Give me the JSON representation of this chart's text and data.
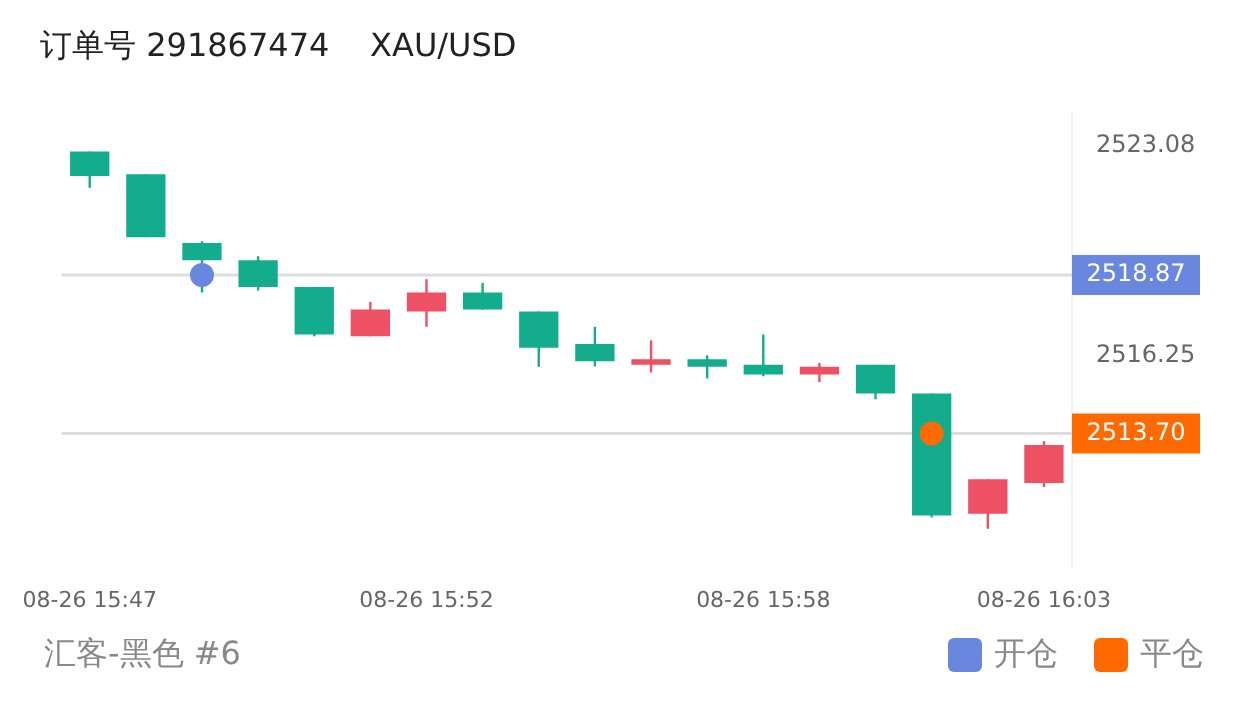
{
  "chart_data": {
    "type": "candlestick",
    "title": "订单号 291867474    XAU/USD",
    "categories": [
      "08-26 15:47",
      null,
      null,
      null,
      null,
      null,
      "08-26 15:52",
      null,
      null,
      null,
      null,
      null,
      "08-26 15:58",
      null,
      null,
      null,
      null,
      "08-26 16:03"
    ],
    "ohlc": [
      [
        2522.89,
        2522.89,
        2521.71,
        2522.09
      ],
      [
        2522.15,
        2522.15,
        2520.1,
        2520.1
      ],
      [
        2519.91,
        2519.97,
        2518.3,
        2519.35
      ],
      [
        2519.35,
        2519.48,
        2518.36,
        2518.48
      ],
      [
        2518.48,
        2518.48,
        2516.87,
        2516.93
      ],
      [
        2516.87,
        2517.99,
        2516.87,
        2517.74
      ],
      [
        2517.68,
        2518.73,
        2517.18,
        2518.3
      ],
      [
        2518.3,
        2518.61,
        2517.74,
        2517.74
      ],
      [
        2517.68,
        2517.68,
        2515.88,
        2516.5
      ],
      [
        2516.62,
        2517.18,
        2515.89,
        2516.06
      ],
      [
        2515.94,
        2516.74,
        2515.69,
        2516.12
      ],
      [
        2516.12,
        2516.25,
        2515.5,
        2515.88
      ],
      [
        2515.94,
        2516.93,
        2515.57,
        2515.63
      ],
      [
        2515.63,
        2516.0,
        2515.38,
        2515.88
      ],
      [
        2515.94,
        2515.94,
        2514.82,
        2515.01
      ],
      [
        2515.01,
        2515.01,
        2510.97,
        2511.03
      ],
      [
        2511.09,
        2512.21,
        2510.6,
        2512.21
      ],
      [
        2512.09,
        2513.45,
        2511.96,
        2513.33
      ]
    ],
    "colors": [
      "#13ad8d",
      "#13ad8d",
      "#13ad8d",
      "#13ad8d",
      "#13ad8d",
      "#ee5163",
      "#ee5163",
      "#13ad8d",
      "#13ad8d",
      "#13ad8d",
      "#ee5163",
      "#13ad8d",
      "#13ad8d",
      "#ee5163",
      "#13ad8d",
      "#13ad8d",
      "#ee5163",
      "#ee5163"
    ],
    "series": [
      {
        "name": "开仓",
        "type": "scatter",
        "color": "#6a87e0",
        "values": [
          null,
          null,
          2518.87,
          null,
          null,
          null,
          null,
          null,
          null,
          null,
          null,
          null,
          null,
          null,
          null,
          null,
          null,
          null
        ]
      },
      {
        "name": "平仓",
        "type": "scatter",
        "color": "#ff6a00",
        "values": [
          null,
          null,
          null,
          null,
          null,
          null,
          null,
          null,
          null,
          null,
          null,
          null,
          null,
          null,
          null,
          2513.7,
          null,
          null
        ]
      }
    ],
    "marker": "circle",
    "ylim": [
      2509.4,
      2524.1
    ],
    "yticks": [
      2516.25,
      2523.08
    ],
    "ref_lines": [
      {
        "axis": "y",
        "value": 2518.87,
        "label": "2518.87",
        "color": "#dddddd"
      },
      {
        "axis": "y",
        "value": 2513.7,
        "label": "2513.70",
        "color": "#dddddd"
      }
    ],
    "legend": "bottom right",
    "annotations": [
      "汇客-黑色 #6"
    ]
  }
}
